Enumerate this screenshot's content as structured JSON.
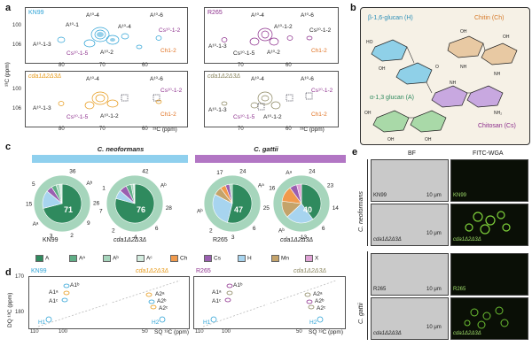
{
  "panels": {
    "a": "a",
    "b": "b",
    "c": "c",
    "d": "d",
    "e": "e"
  },
  "panel_a": {
    "plots": [
      {
        "strain": "KN99",
        "color": "#2fa3d6",
        "labels": [
          "A¹⁰-4",
          "A¹⁰-1",
          "A¹⁰-3",
          "A¹⁰-1-3",
          "A¹⁰-4",
          "A¹⁰-2",
          "A¹⁰-6",
          "Cs¹⁰-1-2",
          "Cs¹⁰-1-5",
          "Ch1-2"
        ]
      },
      {
        "strain": "R265",
        "color": "#8c2e8c",
        "labels": [
          "A¹⁰-4",
          "A¹⁰-6",
          "Cs¹⁰-1-2",
          "A¹⁰-1-2",
          "Ch1-2",
          "A¹⁰-2",
          "A¹⁰-1-3",
          "Cs¹⁰-1-5"
        ]
      },
      {
        "strain": "cda1Δ2Δ3Δ",
        "color": "#e79a1a",
        "labels": [
          "A¹⁰-4",
          "A¹⁰-6",
          "Cs¹⁰-1-2",
          "A¹⁰-1-3",
          "Cs¹⁰-1-5",
          "A¹⁰-1-2",
          "Ch1-2"
        ]
      },
      {
        "strain": "cda1Δ2Δ3Δ",
        "color": "#8b8660",
        "labels": [
          "A¹⁰-4",
          "A¹⁰-6",
          "Cs¹⁰-1-2",
          "A¹⁰-1-3",
          "A¹⁰-1-2",
          "Cs¹⁰-1-5",
          "Ch1-2"
        ]
      }
    ],
    "yaxis": "¹³C (ppm)",
    "yticks": [
      "100",
      "106"
    ],
    "xticks": [
      "80",
      "70",
      "60"
    ],
    "xlabel": "¹³C (ppm)"
  },
  "panel_b": {
    "beta_title": "β-1,6-glucan (H)",
    "chitin_title": "Chitin (Ch)",
    "alpha_title": "α-1,3 glucan (A)",
    "chitosan_title": "Chitosan (Cs)"
  },
  "panel_c": {
    "species": [
      "C. neoformans",
      "C. gattii"
    ],
    "pies": [
      {
        "strain": "KN99",
        "inner": [
          71,
          15,
          5,
          4,
          3,
          2
        ],
        "outer_label": "36",
        "labels": [
          "36",
          "Aᵇ",
          "26",
          "9",
          "2",
          "3",
          "Aᵃ",
          "15",
          "5",
          "71"
        ]
      },
      {
        "strain": "cda1Δ2Δ3Δ",
        "inner": [
          76,
          7,
          6,
          4,
          2,
          1
        ],
        "labels": [
          "42",
          "Aᵇ",
          "28",
          "6",
          "4",
          "2",
          "7",
          "1",
          "76"
        ]
      },
      {
        "strain": "R265",
        "inner": [
          47,
          25,
          6,
          4,
          3,
          2
        ],
        "labels": [
          "24",
          "Aᵃ",
          "25",
          "6",
          "3",
          "2",
          "Aᵇ",
          "47",
          "17"
        ]
      },
      {
        "strain": "cda1Δ2Δ3Δ",
        "inner": [
          40,
          23,
          14,
          13,
          6,
          4
        ],
        "labels": [
          "24",
          "23",
          "14",
          "6",
          "13",
          "Aᵇ",
          "40",
          "16",
          "Aᵃ"
        ]
      }
    ],
    "legend": [
      {
        "name": "A",
        "color": "#2f8a5e"
      },
      {
        "name": "Aᵃ",
        "color": "#5fae86"
      },
      {
        "name": "Aᵇ",
        "color": "#a6d5bc"
      },
      {
        "name": "Aᶜ",
        "color": "#d3ecdf"
      },
      {
        "name": "Ch",
        "color": "#f09a4c"
      },
      {
        "name": "Cs",
        "color": "#9a5fb0"
      },
      {
        "name": "H",
        "color": "#a7d4ef"
      },
      {
        "name": "Mn",
        "color": "#c4a36a"
      },
      {
        "name": "X",
        "color": "#e0a3d6"
      }
    ]
  },
  "panel_d": {
    "strains": [
      "KN99",
      "cda1Δ2Δ3Δ",
      "R265",
      "cda1Δ2Δ3Δ"
    ],
    "ylabel": "DQ ¹³C (ppm)",
    "yticks": [
      "170",
      "180"
    ],
    "xticks_left": [
      "110",
      "100",
      "50"
    ],
    "xticks_right": [
      "110",
      "100",
      "50"
    ],
    "xlabel": "SQ ¹³C (ppm)",
    "peaks_left": [
      "A1ᵇ",
      "A1ᵃ",
      "A1ᶜ",
      "H1",
      "A2ᵃ",
      "A2ᵇ",
      "A2ᶜ",
      "H2"
    ],
    "peaks_right": [
      "A1ᵇ",
      "A1ᵃ",
      "A1ᶜ",
      "H1",
      "A2ᵃ",
      "A2ᵇ",
      "A2ᶜ",
      "H2"
    ]
  },
  "panel_e": {
    "col_bf": "BF",
    "col_fl": "FITC-WGA",
    "species": [
      "C. neoformans",
      "C. gattii"
    ],
    "rows": [
      "KN99",
      "cda1Δ2Δ3Δ",
      "R265",
      "cda1Δ2Δ3Δ"
    ],
    "scale_label": "10 μm"
  }
}
